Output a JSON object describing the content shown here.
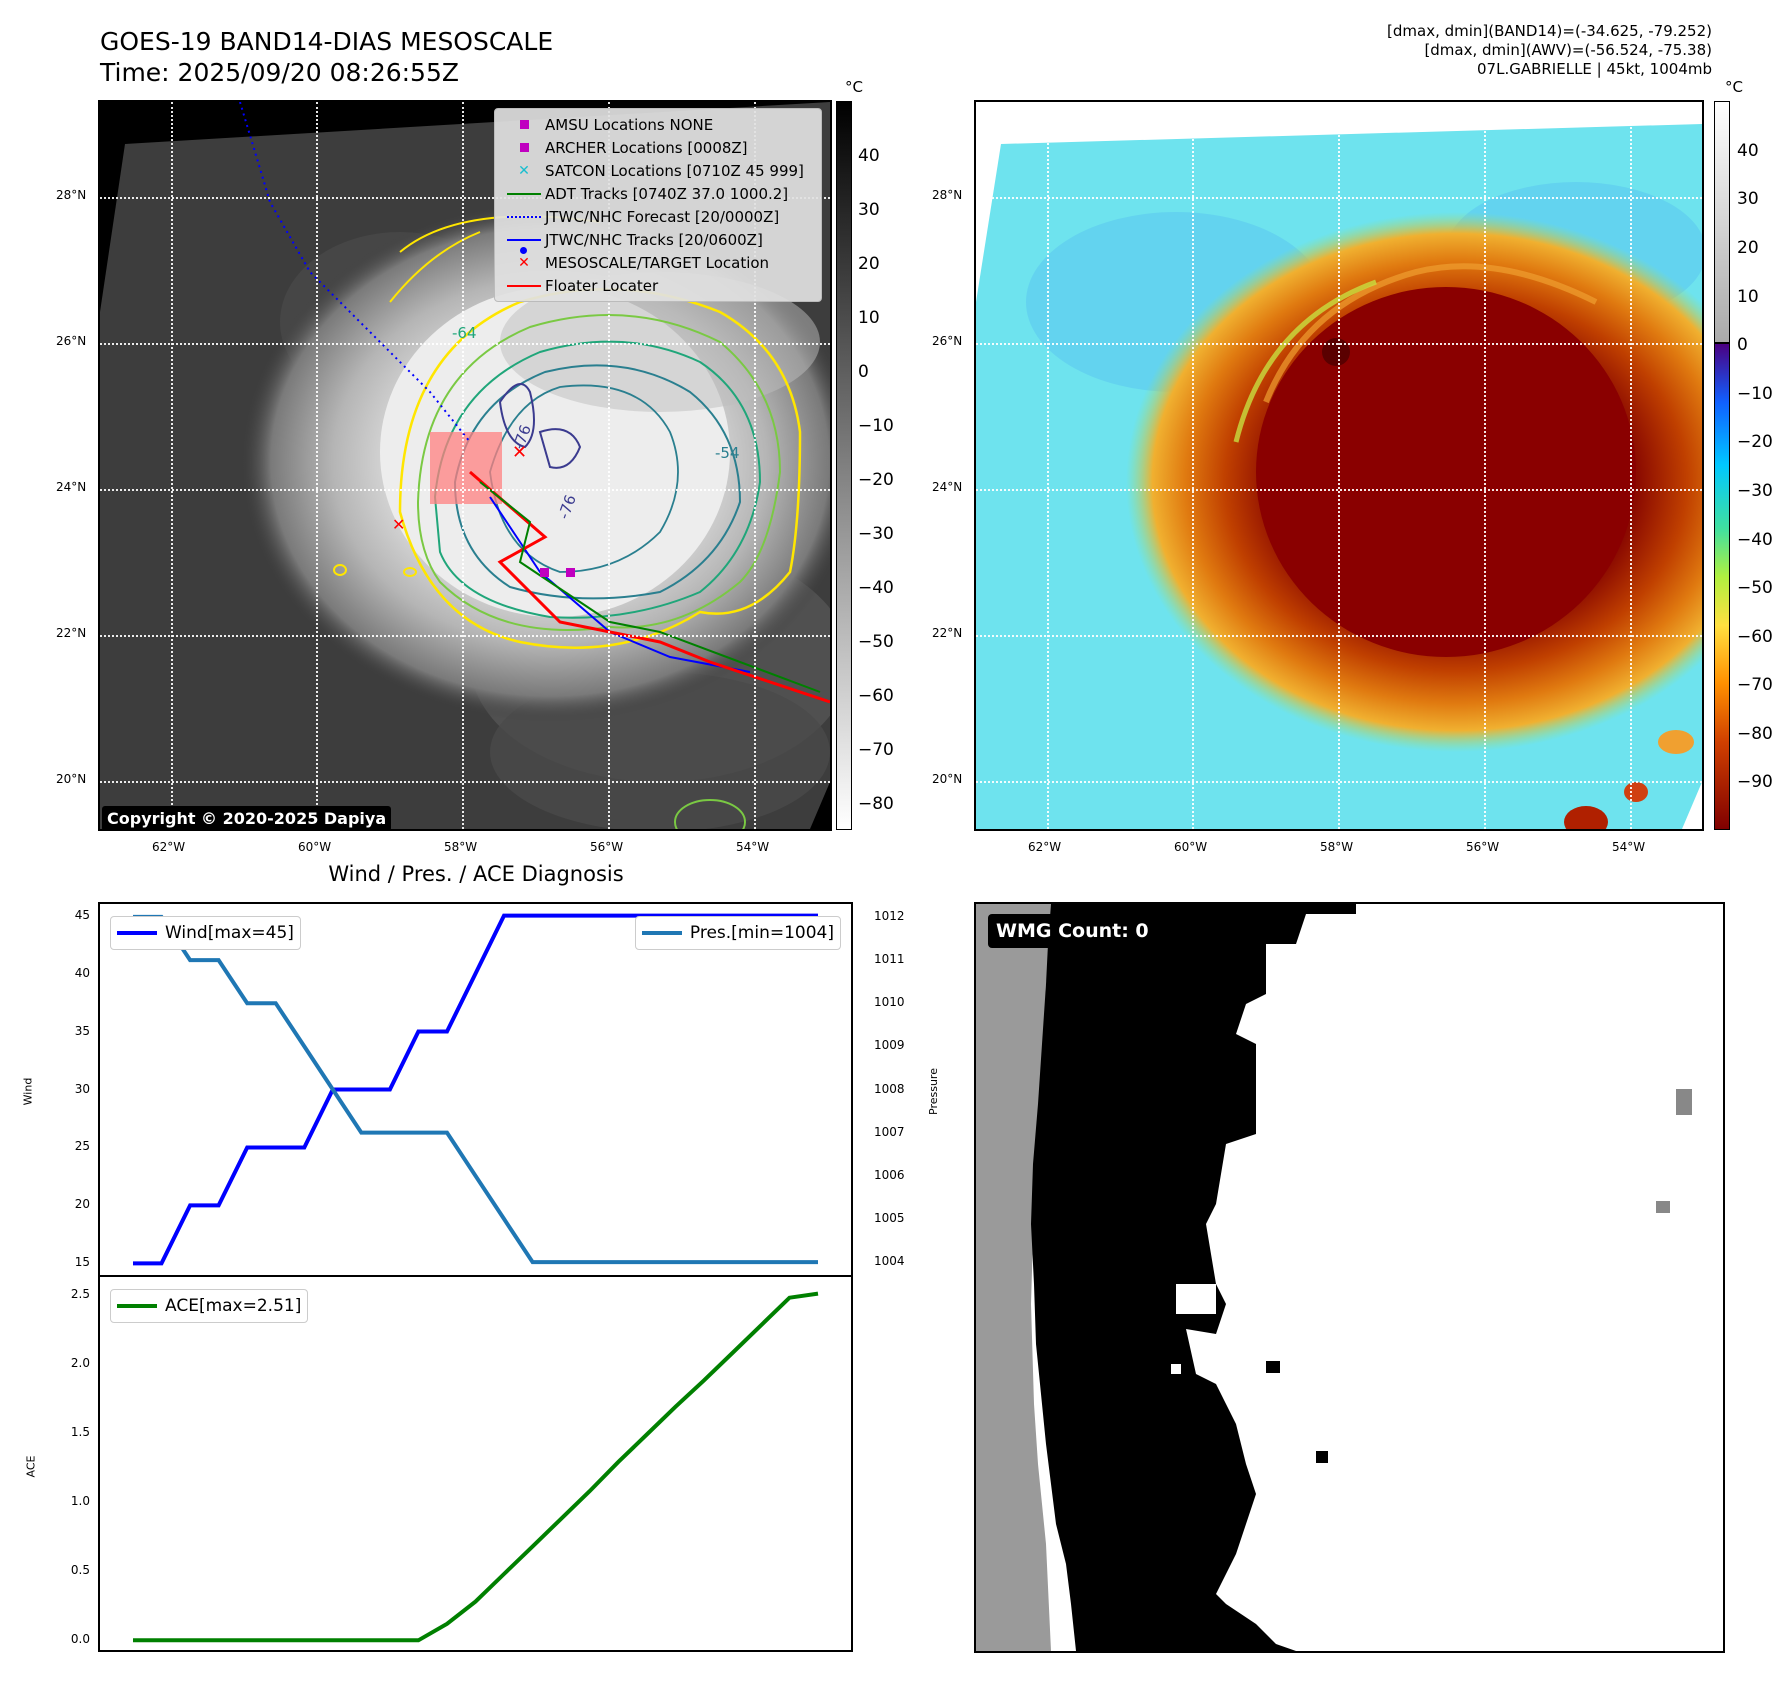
{
  "header": {
    "title_line1": "GOES-19 BAND14-DIAS MESOSCALE",
    "title_line2": "Time: 2025/09/20 08:26:55Z",
    "info_line1": "[dmax, dmin](BAND14)=(-34.625, -79.252)",
    "info_line2": "[dmax, dmin](AWV)=(-56.524, -75.38)",
    "info_line3": "07L.GABRIELLE | 45kt, 1004mb"
  },
  "map": {
    "lat_labels": [
      "28°N",
      "26°N",
      "24°N",
      "22°N",
      "20°N"
    ],
    "lon_labels": [
      "62°W",
      "60°W",
      "58°W",
      "56°W",
      "54°W"
    ],
    "copyright": "Copyright © 2020-2025 Dapiya",
    "contour_labels": [
      "-64",
      "-54",
      "-76",
      "-76"
    ],
    "colors": {
      "ir_background": "#3a3a3a",
      "fog": "#000000"
    }
  },
  "legend": {
    "items": [
      {
        "label": "AMSU Locations NONE",
        "color": "#c000c0",
        "marker": "square"
      },
      {
        "label": "ARCHER Locations [0008Z]",
        "color": "#c000c0",
        "marker": "square"
      },
      {
        "label": "SATCON Locations [0710Z 45 999]",
        "color": "#17becf",
        "marker": "x"
      },
      {
        "label": "ADT Tracks [0740Z 37.0 1000.2]",
        "color": "#008000",
        "marker": "line"
      },
      {
        "label": "JTWC/NHC Forecast [20/0000Z]",
        "color": "#0000ff",
        "marker": "dotted"
      },
      {
        "label": "JTWC/NHC Tracks [20/0600Z]",
        "color": "#0000ff",
        "marker": "line-dot"
      },
      {
        "label": "MESOSCALE/TARGET Location",
        "color": "#ff0000",
        "marker": "x"
      },
      {
        "label": "Floater Locater",
        "color": "#ff0000",
        "marker": "line"
      }
    ]
  },
  "colorbars": {
    "unit": "°C",
    "left_ticks": [
      "40",
      "30",
      "20",
      "10",
      "0",
      "−10",
      "−20",
      "−30",
      "−40",
      "−50",
      "−60",
      "−70",
      "−80"
    ],
    "right_ticks": [
      "40",
      "30",
      "20",
      "10",
      "0",
      "−10",
      "−20",
      "−30",
      "−40",
      "−50",
      "−60",
      "−70",
      "−80",
      "−90"
    ]
  },
  "chart_data": [
    {
      "type": "line",
      "title": "Wind / Pres. / ACE Diagnosis",
      "ylabel": "Wind",
      "ylabel_right": "Pressure",
      "ylim": [
        14,
        46
      ],
      "ylim_right": [
        1003.7,
        1012.3
      ],
      "yticks": [
        "45",
        "40",
        "35",
        "30",
        "25",
        "20",
        "15"
      ],
      "yticks_right": [
        "1012",
        "1011",
        "1010",
        "1009",
        "1008",
        "1007",
        "1006",
        "1005",
        "1004"
      ],
      "x": [
        0,
        1,
        2,
        3,
        4,
        5,
        6,
        7,
        8,
        9,
        10,
        11,
        12,
        13,
        14,
        15,
        16,
        17,
        18,
        19,
        20,
        21,
        22,
        23,
        24
      ],
      "series": [
        {
          "name": "Wind[max=45]",
          "color": "#0000ff",
          "values": [
            15,
            15,
            20,
            20,
            25,
            25,
            25,
            30,
            30,
            30,
            35,
            35,
            40,
            45,
            45,
            45,
            45,
            45,
            45,
            45,
            45,
            45,
            45,
            45,
            45
          ]
        },
        {
          "name": "Pres.[min=1004]",
          "color": "#1f77b4",
          "axis": "right",
          "values": [
            1012,
            1012,
            1011,
            1011,
            1010,
            1010,
            1009,
            1008,
            1007,
            1007,
            1007,
            1007,
            1006,
            1005,
            1004,
            1004,
            1004,
            1004,
            1004,
            1004,
            1004,
            1004,
            1004,
            1004,
            1004
          ]
        }
      ]
    },
    {
      "type": "line",
      "ylabel": "ACE",
      "ylim": [
        -0.07,
        2.63
      ],
      "yticks": [
        "2.5",
        "2.0",
        "1.5",
        "1.0",
        "0.5",
        "0.0"
      ],
      "x": [
        0,
        1,
        2,
        3,
        4,
        5,
        6,
        7,
        8,
        9,
        10,
        11,
        12,
        13,
        14,
        15,
        16,
        17,
        18,
        19,
        20,
        21,
        22,
        23,
        24
      ],
      "series": [
        {
          "name": "ACE[max=2.51]",
          "color": "#008000",
          "values": [
            0,
            0,
            0,
            0,
            0,
            0,
            0,
            0,
            0,
            0,
            0,
            0.12,
            0.28,
            0.48,
            0.68,
            0.88,
            1.08,
            1.29,
            1.49,
            1.69,
            1.88,
            2.08,
            2.28,
            2.48,
            2.51
          ]
        }
      ]
    }
  ],
  "wmg": {
    "count_label": "WMG Count: 0"
  }
}
